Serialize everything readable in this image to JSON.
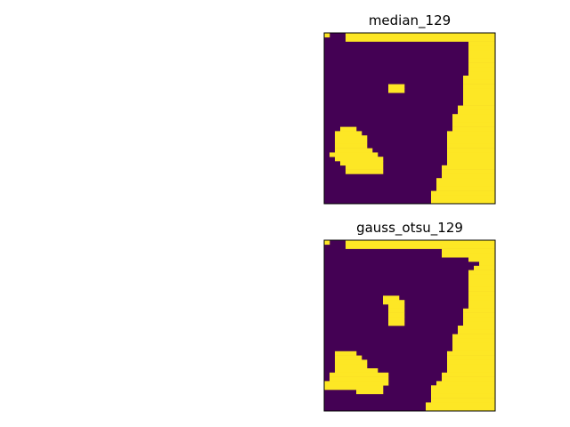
{
  "figure": {
    "background": "#ffffff"
  },
  "colors": {
    "background_class": "#440154",
    "foreground_class": "#fde725",
    "frame": "#000000"
  },
  "chart_data": [
    {
      "type": "heatmap",
      "title": "median_129",
      "grid": false,
      "ticks": "none",
      "rows": [
        {
          "fg": [
            [
              0,
              0
            ],
            [
              4,
              31
            ]
          ]
        },
        {
          "fg": [
            [
              4,
              31
            ]
          ]
        },
        {
          "fg": [
            [
              27,
              31
            ]
          ]
        },
        {
          "fg": [
            [
              27,
              31
            ]
          ]
        },
        {
          "fg": [
            [
              27,
              31
            ]
          ]
        },
        {
          "fg": [
            [
              27,
              31
            ]
          ]
        },
        {
          "fg": [
            [
              27,
              31
            ]
          ]
        },
        {
          "fg": [
            [
              27,
              31
            ]
          ]
        },
        {
          "fg": [
            [
              27,
              31
            ]
          ]
        },
        {
          "fg": [
            [
              27,
              31
            ]
          ]
        },
        {
          "fg": [
            [
              26,
              31
            ]
          ]
        },
        {
          "fg": [
            [
              26,
              31
            ]
          ]
        },
        {
          "fg": [
            [
              12,
              14
            ],
            [
              26,
              31
            ]
          ]
        },
        {
          "fg": [
            [
              12,
              14
            ],
            [
              26,
              31
            ]
          ]
        },
        {
          "fg": [
            [
              26,
              31
            ]
          ]
        },
        {
          "fg": [
            [
              26,
              31
            ]
          ]
        },
        {
          "fg": [
            [
              26,
              31
            ]
          ]
        },
        {
          "fg": [
            [
              25,
              31
            ]
          ]
        },
        {
          "fg": [
            [
              25,
              31
            ]
          ]
        },
        {
          "fg": [
            [
              24,
              31
            ]
          ]
        },
        {
          "fg": [
            [
              24,
              31
            ]
          ]
        },
        {
          "fg": [
            [
              24,
              31
            ]
          ]
        },
        {
          "fg": [
            [
              3,
              5
            ],
            [
              24,
              31
            ]
          ]
        },
        {
          "fg": [
            [
              2,
              6
            ],
            [
              23,
              31
            ]
          ]
        },
        {
          "fg": [
            [
              2,
              7
            ],
            [
              23,
              31
            ]
          ]
        },
        {
          "fg": [
            [
              2,
              7
            ],
            [
              23,
              31
            ]
          ]
        },
        {
          "fg": [
            [
              2,
              7
            ],
            [
              23,
              31
            ]
          ]
        },
        {
          "fg": [
            [
              2,
              8
            ],
            [
              23,
              31
            ]
          ]
        },
        {
          "fg": [
            [
              1,
              9
            ],
            [
              23,
              31
            ]
          ]
        },
        {
          "fg": [
            [
              2,
              10
            ],
            [
              23,
              31
            ]
          ]
        },
        {
          "fg": [
            [
              3,
              10
            ],
            [
              23,
              31
            ]
          ]
        },
        {
          "fg": [
            [
              4,
              10
            ],
            [
              22,
              31
            ]
          ]
        },
        {
          "fg": [
            [
              4,
              10
            ],
            [
              22,
              31
            ]
          ]
        },
        {
          "fg": [
            [
              22,
              31
            ]
          ]
        },
        {
          "fg": [
            [
              21,
              31
            ]
          ]
        },
        {
          "fg": [
            [
              21,
              31
            ]
          ]
        },
        {
          "fg": [
            [
              21,
              31
            ]
          ]
        },
        {
          "fg": [
            [
              20,
              31
            ]
          ]
        },
        {
          "fg": [
            [
              20,
              31
            ]
          ]
        },
        {
          "fg": [
            [
              20,
              31
            ]
          ]
        }
      ]
    },
    {
      "type": "heatmap",
      "title": "gauss_otsu_129",
      "grid": false,
      "ticks": "none",
      "rows": [
        {
          "fg": [
            [
              0,
              0
            ],
            [
              4,
              31
            ]
          ]
        },
        {
          "fg": [
            [
              4,
              31
            ]
          ]
        },
        {
          "fg": [
            [
              22,
              31
            ]
          ]
        },
        {
          "fg": [
            [
              22,
              31
            ]
          ]
        },
        {
          "fg": [
            [
              27,
              31
            ]
          ]
        },
        {
          "fg": [
            [
              29,
              31
            ]
          ]
        },
        {
          "fg": [
            [
              28,
              31
            ]
          ]
        },
        {
          "fg": [
            [
              27,
              31
            ]
          ]
        },
        {
          "fg": [
            [
              27,
              31
            ]
          ]
        },
        {
          "fg": [
            [
              27,
              31
            ]
          ]
        },
        {
          "fg": [
            [
              27,
              31
            ]
          ]
        },
        {
          "fg": [
            [
              27,
              31
            ]
          ]
        },
        {
          "fg": [
            [
              27,
              31
            ]
          ]
        },
        {
          "fg": [
            [
              11,
              13
            ],
            [
              27,
              31
            ]
          ]
        },
        {
          "fg": [
            [
              11,
              14
            ],
            [
              27,
              31
            ]
          ]
        },
        {
          "fg": [
            [
              12,
              14
            ],
            [
              27,
              31
            ]
          ]
        },
        {
          "fg": [
            [
              12,
              14
            ],
            [
              26,
              31
            ]
          ]
        },
        {
          "fg": [
            [
              12,
              14
            ],
            [
              26,
              31
            ]
          ]
        },
        {
          "fg": [
            [
              12,
              14
            ],
            [
              26,
              31
            ]
          ]
        },
        {
          "fg": [
            [
              12,
              14
            ],
            [
              26,
              31
            ]
          ]
        },
        {
          "fg": [
            [
              25,
              31
            ]
          ]
        },
        {
          "fg": [
            [
              25,
              31
            ]
          ]
        },
        {
          "fg": [
            [
              24,
              31
            ]
          ]
        },
        {
          "fg": [
            [
              24,
              31
            ]
          ]
        },
        {
          "fg": [
            [
              24,
              31
            ]
          ]
        },
        {
          "fg": [
            [
              24,
              31
            ]
          ]
        },
        {
          "fg": [
            [
              2,
              5
            ],
            [
              23,
              31
            ]
          ]
        },
        {
          "fg": [
            [
              2,
              6
            ],
            [
              23,
              31
            ]
          ]
        },
        {
          "fg": [
            [
              2,
              7
            ],
            [
              23,
              31
            ]
          ]
        },
        {
          "fg": [
            [
              2,
              7
            ],
            [
              23,
              31
            ]
          ]
        },
        {
          "fg": [
            [
              2,
              9
            ],
            [
              23,
              31
            ]
          ]
        },
        {
          "fg": [
            [
              1,
              11
            ],
            [
              22,
              31
            ]
          ]
        },
        {
          "fg": [
            [
              1,
              11
            ],
            [
              22,
              31
            ]
          ]
        },
        {
          "fg": [
            [
              0,
              11
            ],
            [
              21,
              31
            ]
          ]
        },
        {
          "fg": [
            [
              0,
              10
            ],
            [
              20,
              31
            ]
          ]
        },
        {
          "fg": [
            [
              6,
              10
            ],
            [
              20,
              31
            ]
          ]
        },
        {
          "fg": [
            [
              20,
              31
            ]
          ]
        },
        {
          "fg": [
            [
              20,
              31
            ]
          ]
        },
        {
          "fg": [
            [
              19,
              31
            ]
          ]
        },
        {
          "fg": [
            [
              19,
              31
            ]
          ]
        }
      ]
    }
  ]
}
